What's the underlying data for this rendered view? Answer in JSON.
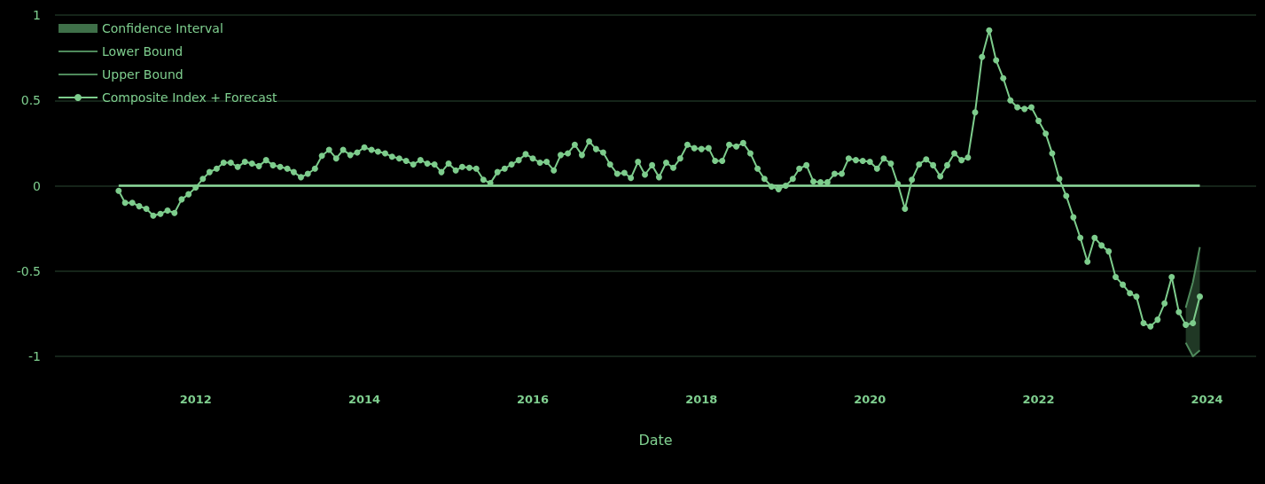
{
  "chart_data": {
    "type": "line",
    "xlabel": "Date",
    "xlim": [
      "2010-05",
      "2024-08"
    ],
    "xticks": [
      "2012",
      "2014",
      "2016",
      "2018",
      "2020",
      "2022",
      "2024"
    ],
    "ylim": [
      -1,
      1
    ],
    "yticks": [
      -1,
      -0.5,
      0,
      0.5,
      1
    ],
    "grid": "y",
    "legend": "top left",
    "marker": "circle",
    "line_style": "solid",
    "ref_lines": [
      {
        "axis": "y",
        "value": 0,
        "color": "#8edb9c"
      }
    ],
    "series": [
      {
        "name": "Confidence Interval",
        "type": "area",
        "color": "#3f7049",
        "x": [
          "2023-10",
          "2023-11",
          "2023-12"
        ],
        "values": [
          null,
          null,
          null
        ],
        "lower": [
          -0.92,
          -1.0,
          -0.965
        ],
        "upper": [
          -0.715,
          -0.565,
          -0.36
        ]
      },
      {
        "name": "Lower Bound",
        "type": "line",
        "color": "#4f8a5c",
        "marker": "none",
        "x": [
          "2023-10",
          "2023-11",
          "2023-12"
        ],
        "values": [
          -0.92,
          -1.0,
          -0.965
        ]
      },
      {
        "name": "Upper Bound",
        "type": "line",
        "color": "#4f8a5c",
        "marker": "none",
        "x": [
          "2023-10",
          "2023-11",
          "2023-12"
        ],
        "values": [
          -0.715,
          -0.565,
          -0.36
        ]
      },
      {
        "name": "Composite Index + Forecast",
        "color": "#7dcc8c",
        "x": [
          "2011-02",
          "2011-03",
          "2011-04",
          "2011-05",
          "2011-06",
          "2011-07",
          "2011-08",
          "2011-09",
          "2011-10",
          "2011-11",
          "2011-12",
          "2012-01",
          "2012-02",
          "2012-03",
          "2012-04",
          "2012-05",
          "2012-06",
          "2012-07",
          "2012-08",
          "2012-09",
          "2012-10",
          "2012-11",
          "2012-12",
          "2013-01",
          "2013-02",
          "2013-03",
          "2013-04",
          "2013-05",
          "2013-06",
          "2013-07",
          "2013-08",
          "2013-09",
          "2013-10",
          "2013-11",
          "2013-12",
          "2014-01",
          "2014-02",
          "2014-03",
          "2014-04",
          "2014-05",
          "2014-06",
          "2014-07",
          "2014-08",
          "2014-09",
          "2014-10",
          "2014-11",
          "2014-12",
          "2015-01",
          "2015-02",
          "2015-03",
          "2015-04",
          "2015-05",
          "2015-06",
          "2015-07",
          "2015-08",
          "2015-09",
          "2015-10",
          "2015-11",
          "2015-12",
          "2016-01",
          "2016-02",
          "2016-03",
          "2016-04",
          "2016-05",
          "2016-06",
          "2016-07",
          "2016-08",
          "2016-09",
          "2016-10",
          "2016-11",
          "2016-12",
          "2017-01",
          "2017-02",
          "2017-03",
          "2017-04",
          "2017-05",
          "2017-06",
          "2017-07",
          "2017-08",
          "2017-09",
          "2017-10",
          "2017-11",
          "2017-12",
          "2018-01",
          "2018-02",
          "2018-03",
          "2018-04",
          "2018-05",
          "2018-06",
          "2018-07",
          "2018-08",
          "2018-09",
          "2018-10",
          "2018-11",
          "2018-12",
          "2019-01",
          "2019-02",
          "2019-03",
          "2019-04",
          "2019-05",
          "2019-06",
          "2019-07",
          "2019-08",
          "2019-09",
          "2019-10",
          "2019-11",
          "2019-12",
          "2020-01",
          "2020-02",
          "2020-03",
          "2020-04",
          "2020-05",
          "2020-06",
          "2020-07",
          "2020-08",
          "2020-09",
          "2020-10",
          "2020-11",
          "2020-12",
          "2021-01",
          "2021-02",
          "2021-03",
          "2021-04",
          "2021-05",
          "2021-06",
          "2021-07",
          "2021-08",
          "2021-09",
          "2021-10",
          "2021-11",
          "2021-12",
          "2022-01",
          "2022-02",
          "2022-03",
          "2022-04",
          "2022-05",
          "2022-06",
          "2022-07",
          "2022-08",
          "2022-09",
          "2022-10",
          "2022-11",
          "2022-12",
          "2023-01",
          "2023-02",
          "2023-03",
          "2023-04",
          "2023-05",
          "2023-06",
          "2023-07",
          "2023-08",
          "2023-09",
          "2023-10",
          "2023-11",
          "2023-12"
        ],
        "values": [
          -0.03,
          -0.1,
          -0.1,
          -0.12,
          -0.135,
          -0.175,
          -0.165,
          -0.145,
          -0.16,
          -0.08,
          -0.05,
          -0.01,
          0.04,
          0.08,
          0.1,
          0.135,
          0.135,
          0.11,
          0.14,
          0.13,
          0.115,
          0.15,
          0.12,
          0.11,
          0.1,
          0.08,
          0.05,
          0.07,
          0.1,
          0.175,
          0.21,
          0.16,
          0.21,
          0.18,
          0.195,
          0.225,
          0.21,
          0.2,
          0.19,
          0.17,
          0.16,
          0.145,
          0.125,
          0.15,
          0.13,
          0.125,
          0.08,
          0.13,
          0.09,
          0.11,
          0.105,
          0.1,
          0.035,
          0.015,
          0.08,
          0.1,
          0.125,
          0.15,
          0.185,
          0.16,
          0.135,
          0.14,
          0.09,
          0.18,
          0.19,
          0.24,
          0.18,
          0.26,
          0.215,
          0.195,
          0.125,
          0.07,
          0.075,
          0.045,
          0.14,
          0.065,
          0.12,
          0.05,
          0.135,
          0.105,
          0.16,
          0.24,
          0.22,
          0.215,
          0.22,
          0.145,
          0.145,
          0.24,
          0.23,
          0.25,
          0.19,
          0.1,
          0.04,
          -0.005,
          -0.02,
          0.0,
          0.04,
          0.1,
          0.12,
          0.025,
          0.02,
          0.02,
          0.07,
          0.07,
          0.16,
          0.15,
          0.145,
          0.14,
          0.1,
          0.16,
          0.13,
          0.01,
          -0.135,
          0.035,
          0.125,
          0.155,
          0.12,
          0.055,
          0.12,
          0.19,
          0.15,
          0.165,
          0.43,
          0.755,
          0.91,
          0.735,
          0.63,
          0.5,
          0.46,
          0.45,
          0.46,
          0.38,
          0.305,
          0.19,
          0.04,
          -0.06,
          -0.185,
          -0.305,
          -0.445,
          -0.305,
          -0.35,
          -0.385,
          -0.535,
          -0.58,
          -0.63,
          -0.65,
          -0.805,
          -0.825,
          -0.785,
          -0.69,
          -0.535,
          -0.74,
          -0.815,
          -0.805,
          -0.65
        ]
      }
    ]
  }
}
